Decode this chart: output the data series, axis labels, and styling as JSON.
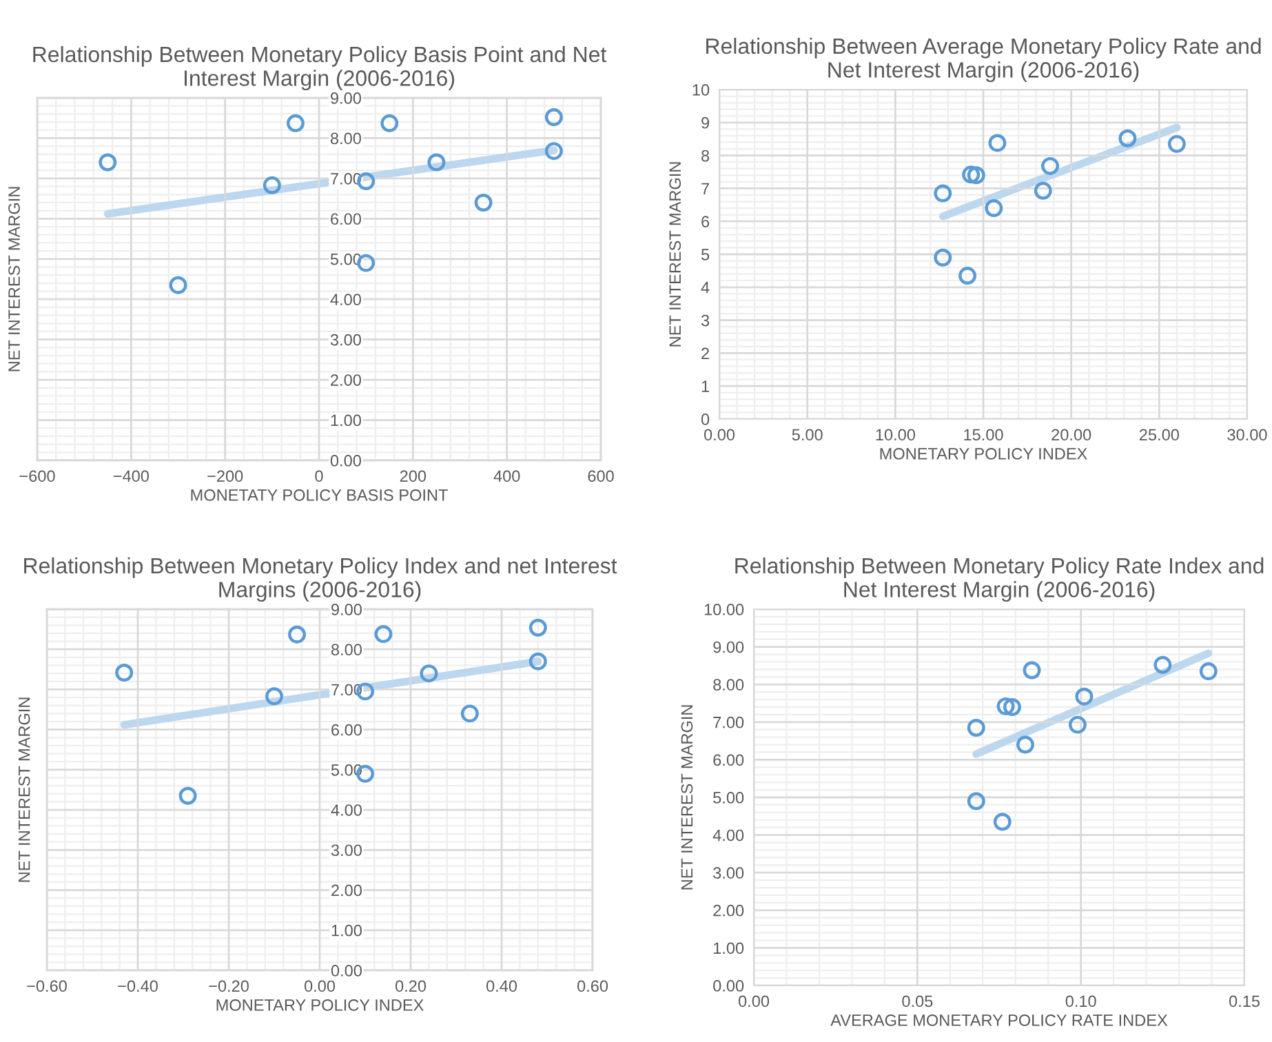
{
  "chart_data": [
    {
      "type": "scatter",
      "title": "Relationship Between Monetary Policy Basis Point and Net Interest Margin (2006-2016)",
      "xlabel": "MONETATY POLICY BASIS POINT",
      "ylabel": "NET INTEREST MARGIN",
      "series": [
        {
          "color": "#5b9bd5",
          "x": [
            -450,
            -300,
            -100,
            -50,
            100,
            100,
            150,
            250,
            350,
            500,
            500
          ],
          "values": [
            7.4,
            4.35,
            6.83,
            8.37,
            6.93,
            4.9,
            8.37,
            7.4,
            6.4,
            8.52,
            7.68
          ]
        },
        {
          "type": "line",
          "marker": "none",
          "color": "#bdd7ee",
          "x": [
            -450,
            500
          ],
          "values": [
            6.12,
            7.7
          ]
        }
      ],
      "xlim": [
        -600,
        600
      ],
      "xticks": [
        {
          "value": -600,
          "label": "−600"
        },
        {
          "value": -400,
          "label": "−400"
        },
        {
          "value": -200,
          "label": "−200"
        },
        0,
        200,
        400,
        600
      ],
      "ylim": [
        0,
        9
      ],
      "yticks": [
        {
          "value": 0,
          "label": "0.00"
        },
        {
          "value": 1,
          "label": "1.00"
        },
        {
          "value": 2,
          "label": "2.00"
        },
        {
          "value": 3,
          "label": "3.00"
        },
        {
          "value": 4,
          "label": "4.00"
        },
        {
          "value": 5,
          "label": "5.00"
        },
        {
          "value": 6,
          "label": "6.00"
        },
        {
          "value": 7,
          "label": "7.00"
        },
        {
          "value": 8,
          "label": "8.00"
        },
        {
          "value": 9,
          "label": "9.00"
        }
      ],
      "marker": "circle",
      "grid": true,
      "legend": false
    },
    {
      "type": "scatter",
      "title": "Relationship Between Average Monetary Policy Rate and Net Interest Margin (2006-2016)",
      "xlabel": "MONETARY POLICY INDEX",
      "ylabel": "NET INTEREST MARGIN",
      "series": [
        {
          "color": "#5b9bd5",
          "x": [
            12.7,
            12.7,
            14.1,
            14.3,
            14.6,
            15.6,
            15.8,
            18.4,
            18.8,
            23.2,
            26.0
          ],
          "values": [
            6.85,
            4.9,
            4.35,
            7.42,
            7.4,
            6.4,
            8.38,
            6.93,
            7.68,
            8.52,
            8.35
          ]
        },
        {
          "type": "line",
          "marker": "none",
          "color": "#bdd7ee",
          "x": [
            12.7,
            26.0
          ],
          "values": [
            6.15,
            8.85
          ]
        }
      ],
      "xlim": [
        0,
        30
      ],
      "xticks": [
        {
          "value": 0,
          "label": "0.00"
        },
        {
          "value": 5,
          "label": "5.00"
        },
        {
          "value": 10,
          "label": "10.00"
        },
        {
          "value": 15,
          "label": "15.00"
        },
        {
          "value": 20,
          "label": "20.00"
        },
        {
          "value": 25,
          "label": "25.00"
        },
        {
          "value": 30,
          "label": "30.00"
        }
      ],
      "ylim": [
        0,
        10
      ],
      "yticks": [
        0,
        1,
        2,
        3,
        4,
        5,
        6,
        7,
        8,
        9,
        10
      ],
      "marker": "circle",
      "grid": true,
      "legend": false
    },
    {
      "type": "scatter",
      "title": "Relationship Between Monetary Policy Index and net Interest Margins (2006-2016)",
      "xlabel": "MONETARY POLICY INDEX",
      "ylabel": "NET INTEREST MARGIN",
      "series": [
        {
          "color": "#5b9bd5",
          "x": [
            -0.43,
            -0.29,
            -0.1,
            -0.05,
            0.1,
            0.1,
            0.14,
            0.24,
            0.33,
            0.48,
            0.48
          ],
          "values": [
            7.42,
            4.35,
            6.83,
            8.37,
            6.95,
            4.9,
            8.38,
            7.4,
            6.4,
            8.54,
            7.7
          ]
        },
        {
          "type": "line",
          "marker": "none",
          "color": "#bdd7ee",
          "x": [
            -0.43,
            0.48
          ],
          "values": [
            6.12,
            7.7
          ]
        }
      ],
      "xlim": [
        -0.6,
        0.6
      ],
      "xticks": [
        {
          "value": -0.6,
          "label": "−0.60"
        },
        {
          "value": -0.4,
          "label": "−0.40"
        },
        {
          "value": -0.2,
          "label": "−0.20"
        },
        {
          "value": 0,
          "label": "0.00"
        },
        {
          "value": 0.2,
          "label": "0.20"
        },
        {
          "value": 0.4,
          "label": "0.40"
        },
        {
          "value": 0.6,
          "label": "0.60"
        }
      ],
      "ylim": [
        0,
        9
      ],
      "yticks": [
        {
          "value": 0,
          "label": "0.00"
        },
        {
          "value": 1,
          "label": "1.00"
        },
        {
          "value": 2,
          "label": "2.00"
        },
        {
          "value": 3,
          "label": "3.00"
        },
        {
          "value": 4,
          "label": "4.00"
        },
        {
          "value": 5,
          "label": "5.00"
        },
        {
          "value": 6,
          "label": "6.00"
        },
        {
          "value": 7,
          "label": "7.00"
        },
        {
          "value": 8,
          "label": "8.00"
        },
        {
          "value": 9,
          "label": "9.00"
        }
      ],
      "marker": "circle",
      "grid": true,
      "legend": false
    },
    {
      "type": "scatter",
      "title": "Relationship Between Monetary Policy Rate Index and Net Interest Margin (2006-2016)",
      "xlabel": "AVERAGE MONETARY POLICY RATE INDEX",
      "ylabel": "NET INTEREST MARGIN",
      "series": [
        {
          "color": "#5b9bd5",
          "x": [
            0.068,
            0.068,
            0.076,
            0.077,
            0.079,
            0.083,
            0.085,
            0.099,
            0.101,
            0.125,
            0.139
          ],
          "values": [
            6.85,
            4.9,
            4.35,
            7.42,
            7.4,
            6.4,
            8.38,
            6.93,
            7.68,
            8.52,
            8.35
          ]
        },
        {
          "type": "line",
          "marker": "none",
          "color": "#bdd7ee",
          "x": [
            0.068,
            0.139
          ],
          "values": [
            6.15,
            8.83
          ]
        }
      ],
      "xlim": [
        0,
        0.15
      ],
      "xticks": [
        {
          "value": 0,
          "label": "0.00"
        },
        {
          "value": 0.05,
          "label": "0.05"
        },
        {
          "value": 0.1,
          "label": "0.10"
        },
        {
          "value": 0.15,
          "label": "0.15"
        }
      ],
      "ylim": [
        0,
        10
      ],
      "yticks": [
        {
          "value": 0,
          "label": "0.00"
        },
        {
          "value": 1,
          "label": "1.00"
        },
        {
          "value": 2,
          "label": "2.00"
        },
        {
          "value": 3,
          "label": "3.00"
        },
        {
          "value": 4,
          "label": "4.00"
        },
        {
          "value": 5,
          "label": "5.00"
        },
        {
          "value": 6,
          "label": "6.00"
        },
        {
          "value": 7,
          "label": "7.00"
        },
        {
          "value": 8,
          "label": "8.00"
        },
        {
          "value": 9,
          "label": "9.00"
        },
        {
          "value": 10,
          "label": "10.00"
        }
      ],
      "marker": "circle",
      "grid": true,
      "legend": false
    }
  ]
}
